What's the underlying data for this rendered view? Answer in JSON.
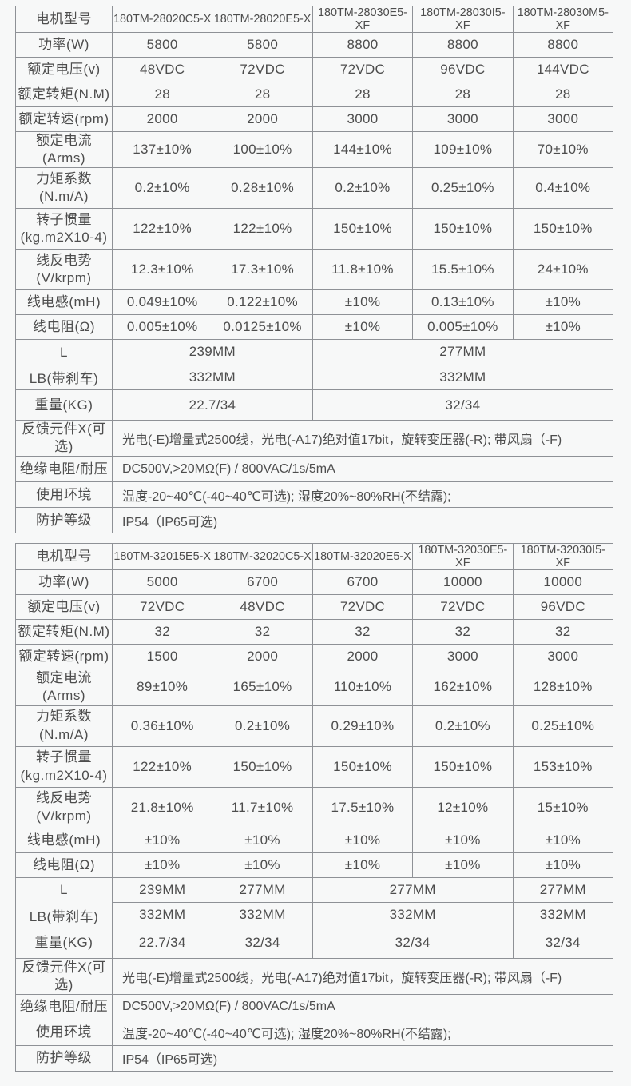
{
  "page": {
    "background_color": "#f7f8f8",
    "border_color": "#8e9196",
    "text_color": "#4d4d4d"
  },
  "tables": [
    {
      "name": "180TM-280-series",
      "header": {
        "label": "电机型号",
        "models": [
          "180TM-28020C5-X",
          "180TM-28020E5-X",
          "180TM-28030E5-XF",
          "180TM-28030I5-XF",
          "180TM-28030M5-XF"
        ]
      },
      "spec_rows": [
        {
          "label": "功率(W)",
          "tall": false,
          "values": [
            "5800",
            "5800",
            "8800",
            "8800",
            "8800"
          ]
        },
        {
          "label": "额定电压(v)",
          "tall": false,
          "values": [
            "48VDC",
            "72VDC",
            "72VDC",
            "96VDC",
            "144VDC"
          ]
        },
        {
          "label": "额定转矩(N.M)",
          "tall": false,
          "values": [
            "28",
            "28",
            "28",
            "28",
            "28"
          ]
        },
        {
          "label": "额定转速(rpm)",
          "tall": false,
          "values": [
            "2000",
            "2000",
            "3000",
            "3000",
            "3000"
          ]
        },
        {
          "label": "额定电流(Arms)",
          "tall": false,
          "values": [
            "137±10%",
            "100±10%",
            "144±10%",
            "109±10%",
            "70±10%"
          ]
        },
        {
          "label": "力矩系数\n(N.m/A)",
          "tall": true,
          "values": [
            "0.2±10%",
            "0.28±10%",
            "0.2±10%",
            "0.25±10%",
            "0.4±10%"
          ]
        },
        {
          "label": "转子惯量\n(kg.m2X10-4)",
          "tall": true,
          "values": [
            "122±10%",
            "122±10%",
            "150±10%",
            "150±10%",
            "150±10%"
          ]
        },
        {
          "label": "线反电势\n(V/krpm)",
          "tall": true,
          "values": [
            "12.3±10%",
            "17.3±10%",
            "11.8±10%",
            "15.5±10%",
            "24±10%"
          ]
        },
        {
          "label": "线电感(mH)",
          "tall": false,
          "values": [
            "0.049±10%",
            "0.122±10%",
            "±10%",
            "0.13±10%",
            "±10%"
          ]
        },
        {
          "label": "线电阻(Ω)",
          "tall": false,
          "values": [
            "0.005±10%",
            "0.0125±10%",
            "±10%",
            "0.005±10%",
            "±10%"
          ]
        }
      ],
      "dims": {
        "l_label": "L",
        "lb_label": "LB(带刹车)",
        "l_cells": [
          {
            "text": "239MM",
            "span": 2
          },
          {
            "text": "277MM",
            "span": 3
          }
        ],
        "lb_cells": [
          {
            "text": "332MM",
            "span": 2
          },
          {
            "text": "332MM",
            "span": 3
          }
        ],
        "weight_label": "重量(KG)",
        "weight_cells": [
          {
            "text": "22.7/34",
            "span": 2
          },
          {
            "text": "32/34",
            "span": 3
          }
        ]
      },
      "footer_rows": [
        {
          "label": "反馈元件X(可选)",
          "value": "光电(-E)增量式2500线，光电(-A17)绝对值17bit，旋转变压器(-R); 带风扇（-F)"
        },
        {
          "label": "绝缘电阻/耐压",
          "value": "DC500V,>20MΩ(F) / 800VAC/1s/5mA"
        },
        {
          "label": "使用环境",
          "value": "温度-20~40℃(-40~40℃可选); 湿度20%~80%RH(不结露);"
        },
        {
          "label": "防护等级",
          "value": "IP54（IP65可选)"
        }
      ]
    },
    {
      "name": "180TM-320-series",
      "header": {
        "label": "电机型号",
        "models": [
          "180TM-32015E5-X",
          "180TM-32020C5-X",
          "180TM-32020E5-X",
          "180TM-32030E5-XF",
          "180TM-32030I5-XF"
        ]
      },
      "spec_rows": [
        {
          "label": "功率(W)",
          "tall": false,
          "values": [
            "5000",
            "6700",
            "6700",
            "10000",
            "10000"
          ]
        },
        {
          "label": "额定电压(v)",
          "tall": false,
          "values": [
            "72VDC",
            "48VDC",
            "72VDC",
            "72VDC",
            "96VDC"
          ]
        },
        {
          "label": "额定转矩(N.M)",
          "tall": false,
          "values": [
            "32",
            "32",
            "32",
            "32",
            "32"
          ]
        },
        {
          "label": "额定转速(rpm)",
          "tall": false,
          "values": [
            "1500",
            "2000",
            "2000",
            "3000",
            "3000"
          ]
        },
        {
          "label": "额定电流(Arms)",
          "tall": false,
          "values": [
            "89±10%",
            "165±10%",
            "110±10%",
            "162±10%",
            "128±10%"
          ]
        },
        {
          "label": "力矩系数\n(N.m/A)",
          "tall": true,
          "values": [
            "0.36±10%",
            "0.2±10%",
            "0.29±10%",
            "0.2±10%",
            "0.25±10%"
          ]
        },
        {
          "label": "转子惯量\n(kg.m2X10-4)",
          "tall": true,
          "values": [
            "122±10%",
            "150±10%",
            "150±10%",
            "150±10%",
            "153±10%"
          ]
        },
        {
          "label": "线反电势\n(V/krpm)",
          "tall": true,
          "values": [
            "21.8±10%",
            "11.7±10%",
            "17.5±10%",
            "12±10%",
            "15±10%"
          ]
        },
        {
          "label": "线电感(mH)",
          "tall": false,
          "values": [
            "±10%",
            "±10%",
            "±10%",
            "±10%",
            "±10%"
          ]
        },
        {
          "label": "线电阻(Ω)",
          "tall": false,
          "values": [
            "±10%",
            "±10%",
            "±10%",
            "±10%",
            "±10%"
          ]
        }
      ],
      "dims": {
        "l_label": "L",
        "lb_label": "LB(带刹车)",
        "l_cells": [
          {
            "text": "239MM",
            "span": 1
          },
          {
            "text": "277MM",
            "span": 1
          },
          {
            "text": "277MM",
            "span": 2
          },
          {
            "text": "277MM",
            "span": 1
          }
        ],
        "lb_cells": [
          {
            "text": "332MM",
            "span": 1
          },
          {
            "text": "332MM",
            "span": 1
          },
          {
            "text": "332MM",
            "span": 2
          },
          {
            "text": "332MM",
            "span": 1
          }
        ],
        "weight_label": "重量(KG)",
        "weight_cells": [
          {
            "text": "22.7/34",
            "span": 1
          },
          {
            "text": "32/34",
            "span": 1
          },
          {
            "text": "32/34",
            "span": 2
          },
          {
            "text": "32/34",
            "span": 1
          }
        ]
      },
      "footer_rows": [
        {
          "label": "反馈元件X(可选)",
          "value": "光电(-E)增量式2500线，光电(-A17)绝对值17bit，旋转变压器(-R); 带风扇（-F)"
        },
        {
          "label": "绝缘电阻/耐压",
          "value": "DC500V,>20MΩ(F) / 800VAC/1s/5mA"
        },
        {
          "label": "使用环境",
          "value": "温度-20~40℃(-40~40℃可选); 湿度20%~80%RH(不结露);"
        },
        {
          "label": "防护等级",
          "value": "IP54（IP65可选)"
        }
      ]
    }
  ]
}
